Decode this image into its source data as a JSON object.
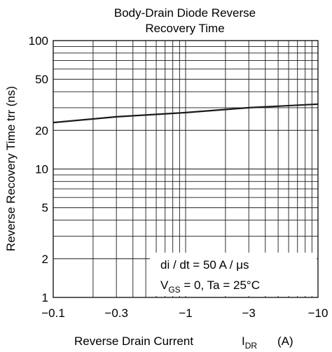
{
  "chart_data": {
    "type": "line",
    "title_lines": [
      "Body-Drain Diode Reverse",
      "Recovery Time"
    ],
    "xlabel": {
      "text": "Reverse Drain Current",
      "symbol": "I",
      "symbol_sub": "DR",
      "unit": "(A)"
    },
    "ylabel": "Reverse Recovery Time  trr  (ns)",
    "x_scale": "log",
    "y_scale": "log",
    "xlim": [
      -0.1,
      -10
    ],
    "ylim": [
      1,
      100
    ],
    "x_tick_values": [
      -0.1,
      -0.3,
      -1,
      -3,
      -10
    ],
    "x_tick_labels": [
      "−0.1",
      "−0.3",
      "−1",
      "−3",
      "−10"
    ],
    "y_tick_values": [
      1,
      2,
      5,
      10,
      20,
      50,
      100
    ],
    "y_tick_labels": [
      "1",
      "2",
      "5",
      "10",
      "20",
      "50",
      "100"
    ],
    "grid": true,
    "annotations": {
      "line1": "di / dt = 50 A / μs",
      "line2_prefix": "V",
      "line2_sub": "GS",
      "line2_rest": " = 0, Ta = 25°C"
    },
    "series": [
      {
        "values": [
          [
            -0.1,
            23
          ],
          [
            -0.3,
            25.5
          ],
          [
            -1,
            27.5
          ],
          [
            -3,
            30
          ],
          [
            -10,
            32
          ]
        ]
      }
    ]
  },
  "colors": {
    "line": "#1a1a1a",
    "grid": "#1a1a1a",
    "background": "#ffffff"
  }
}
